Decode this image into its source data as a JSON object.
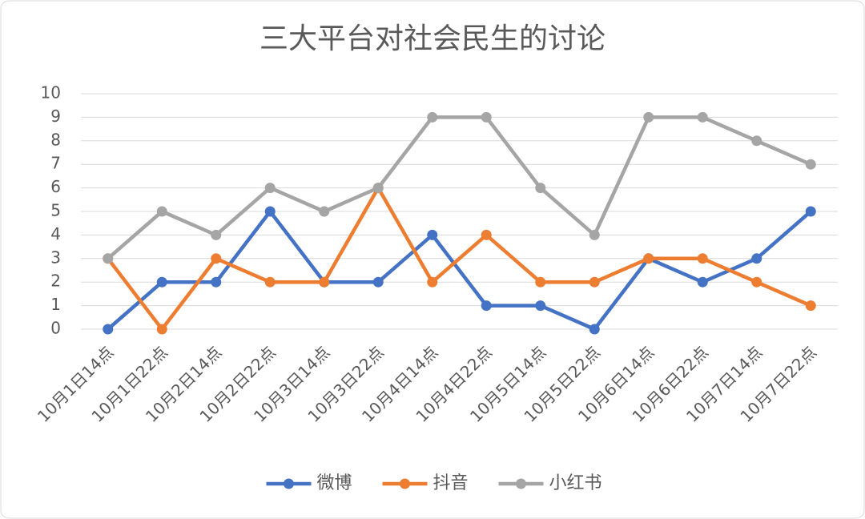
{
  "chart_data": {
    "type": "line",
    "title": "三大平台对社会民生的讨论",
    "categories": [
      "10月1日14点",
      "10月1日22点",
      "10月2日14点",
      "10月2日22点",
      "10月3日14点",
      "10月3日22点",
      "10月4日14点",
      "10月4日22点",
      "10月5日14点",
      "10月5日22点",
      "10月6日14点",
      "10月6日22点",
      "10月7日14点",
      "10月7日22点"
    ],
    "series": [
      {
        "name": "微博",
        "color": "#4472c4",
        "values": [
          0,
          2,
          2,
          5,
          2,
          2,
          4,
          1,
          1,
          0,
          3,
          2,
          3,
          5
        ]
      },
      {
        "name": "抖音",
        "color": "#ed7d31",
        "values": [
          3,
          0,
          3,
          2,
          2,
          6,
          2,
          4,
          2,
          2,
          3,
          3,
          2,
          1
        ]
      },
      {
        "name": "小红书",
        "color": "#a5a5a5",
        "values": [
          3,
          5,
          4,
          6,
          5,
          6,
          9,
          9,
          6,
          4,
          9,
          9,
          8,
          7
        ]
      }
    ],
    "ylim": [
      0,
      10
    ],
    "yticks": [
      0,
      1,
      2,
      3,
      4,
      5,
      6,
      7,
      8,
      9,
      10
    ],
    "grid": true,
    "legend": "bottom"
  }
}
